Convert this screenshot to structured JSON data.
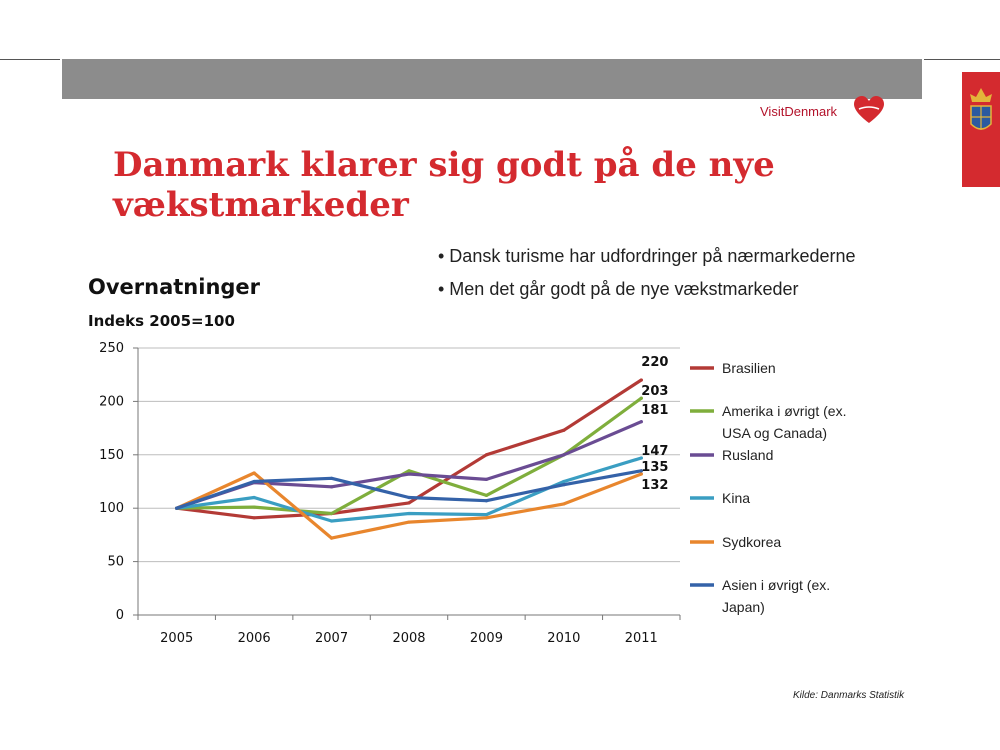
{
  "header": {
    "brand": "VisitDenmark",
    "title": "Danmark klarer sig godt på de nye vækstmarkeder"
  },
  "bullets": [
    "• Dansk turisme har udfordringer på nærmarkederne",
    "• Men det går godt på de nye vækstmarkeder"
  ],
  "footer": {
    "source": "Kilde: Danmarks Statistik"
  },
  "colors": {
    "accent": "#d42a2f",
    "band": "#8c8c8c"
  },
  "chart_data": {
    "type": "line",
    "title": "Overnatninger",
    "subtitle": "Indeks 2005=100",
    "categories": [
      "2005",
      "2006",
      "2007",
      "2008",
      "2009",
      "2010",
      "2011"
    ],
    "ylim": [
      0,
      250
    ],
    "yticks": [
      0,
      50,
      100,
      150,
      200,
      250
    ],
    "grid": "horizontal",
    "legend": "right",
    "series": [
      {
        "name": "Brasilien",
        "color": "#b33a36",
        "values": [
          100,
          91,
          95,
          105,
          150,
          173,
          220
        ],
        "end_label": "220"
      },
      {
        "name": "Amerika i øvrigt (ex. USA og Canada)",
        "name_lines": [
          "Amerika i øvrigt (ex.",
          "USA og Canada)"
        ],
        "color": "#7fae3c",
        "values": [
          100,
          101,
          95,
          135,
          112,
          150,
          203
        ],
        "end_label": "203"
      },
      {
        "name": "Rusland",
        "color": "#6a4c93",
        "values": [
          100,
          124,
          120,
          132,
          127,
          150,
          181
        ],
        "end_label": "181"
      },
      {
        "name": "Kina",
        "color": "#3a9ec2",
        "values": [
          100,
          110,
          88,
          95,
          94,
          125,
          147
        ],
        "end_label": "147"
      },
      {
        "name": "Sydkorea",
        "color": "#e8862d",
        "values": [
          100,
          133,
          72,
          87,
          91,
          104,
          132
        ],
        "end_label": "132"
      },
      {
        "name": "Asien i øvrigt (ex. Japan)",
        "name_lines": [
          "Asien i øvrigt (ex.",
          "Japan)"
        ],
        "color": "#3462a8",
        "values": [
          100,
          125,
          128,
          110,
          107,
          122,
          135
        ],
        "end_label": "135"
      }
    ]
  }
}
